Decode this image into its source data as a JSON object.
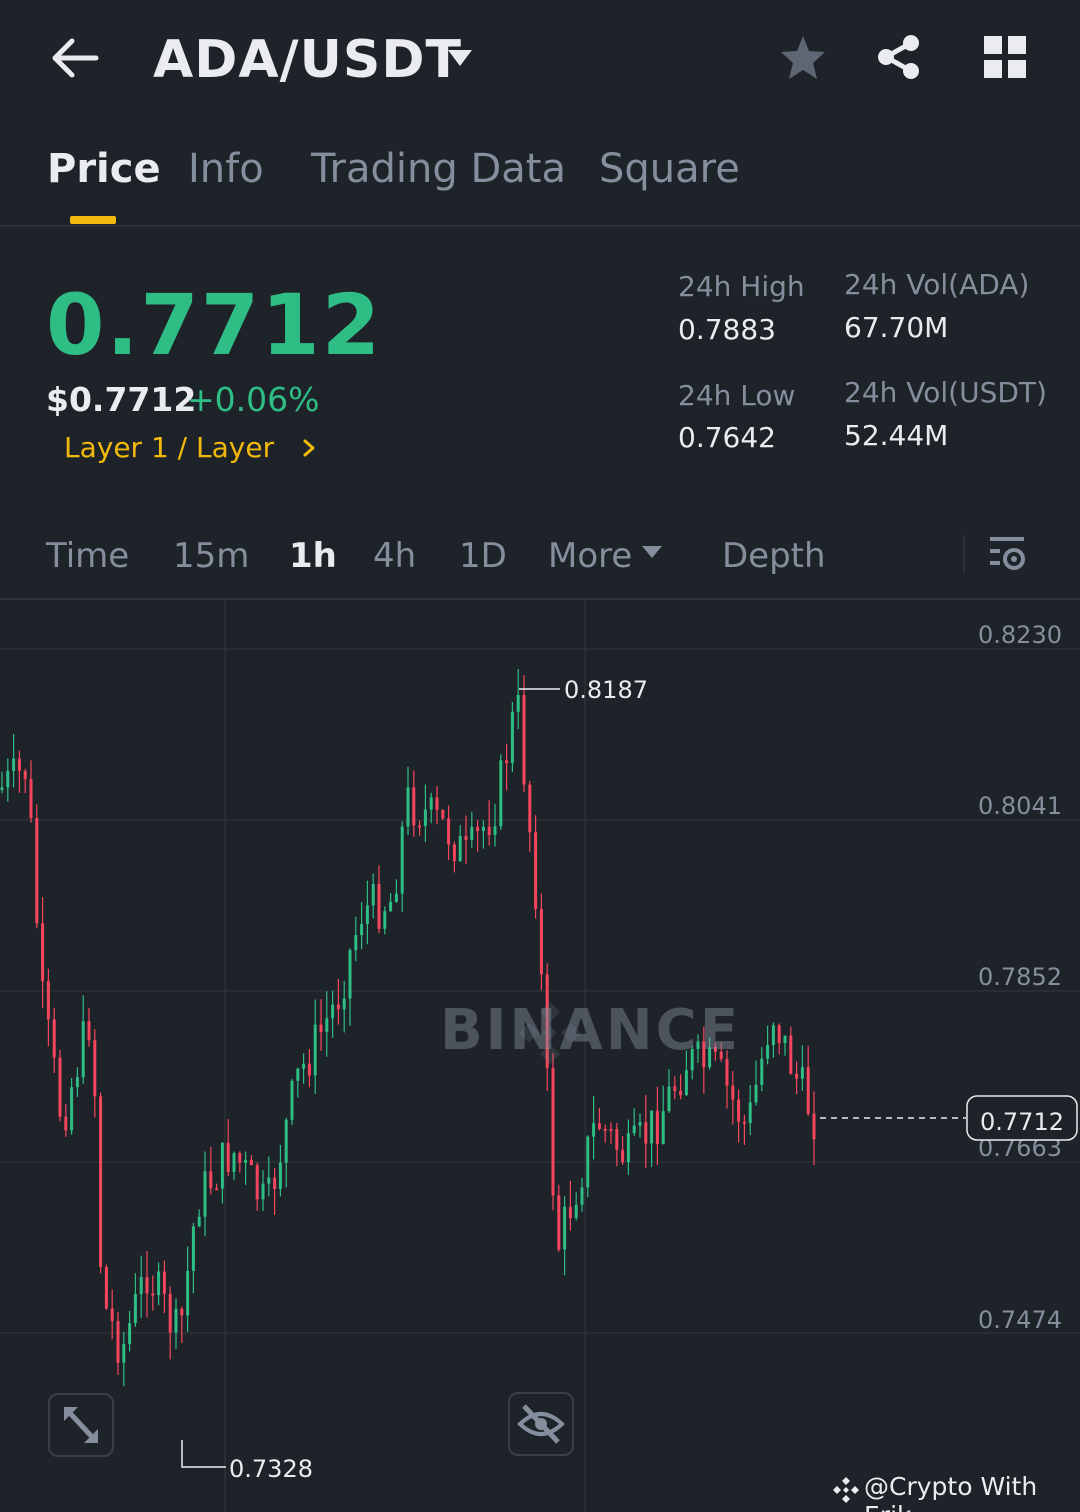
{
  "header": {
    "pair": "ADA/USDT",
    "icons": [
      "back-arrow-icon",
      "caret-down-icon",
      "star-icon",
      "share-icon",
      "grid-icon"
    ]
  },
  "tabs": [
    {
      "label": "Price",
      "active": true
    },
    {
      "label": "Info",
      "active": false
    },
    {
      "label": "Trading Data",
      "active": false
    },
    {
      "label": "Square",
      "active": false
    }
  ],
  "ticker": {
    "last_price": "0.7712",
    "usd_price": "$0.7712",
    "change_pct": "+0.06%",
    "category": "Layer 1 / Layer",
    "high_label": "24h High",
    "high_value": "0.7883",
    "low_label": "24h Low",
    "low_value": "0.7642",
    "vol_base_label": "24h Vol(ADA)",
    "vol_base_value": "67.70M",
    "vol_quote_label": "24h Vol(USDT)",
    "vol_quote_value": "52.44M"
  },
  "intervals": {
    "items": [
      {
        "label": "Time",
        "active": false
      },
      {
        "label": "15m",
        "active": false
      },
      {
        "label": "1h",
        "active": true
      },
      {
        "label": "4h",
        "active": false
      },
      {
        "label": "1D",
        "active": false
      }
    ],
    "more_label": "More",
    "depth_label": "Depth"
  },
  "chart": {
    "y_ticks": [
      "0.8230",
      "0.8041",
      "0.7852",
      "0.7663",
      "0.7474"
    ],
    "high_marker": "0.8187",
    "low_marker": "0.7328",
    "current_price": "0.7712",
    "watermark": "BINANCE",
    "up_color": "#2ebd85",
    "down_color": "#f6465d"
  },
  "credit": "@Crypto With Erik",
  "colors": {
    "background": "#1e2329",
    "accent": "#f0b90b",
    "positive": "#2ebd85",
    "negative": "#f6465d",
    "muted": "#848e9c"
  }
}
